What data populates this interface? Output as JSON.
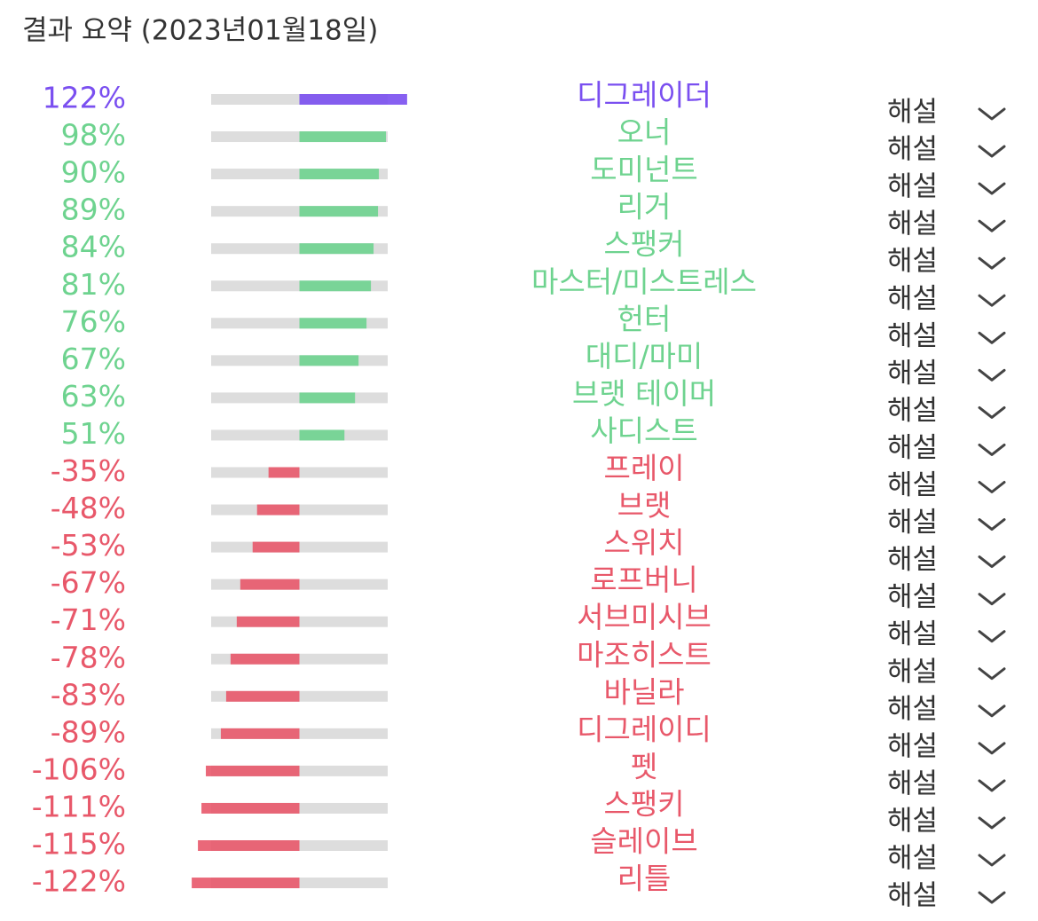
{
  "chart_data": {
    "type": "bar",
    "orientation": "horizontal",
    "title": "결과 요약 (2023년01월18일)",
    "categories": [
      "디그레이더",
      "오너",
      "도미넌트",
      "리거",
      "스팽커",
      "마스터/미스트레스",
      "헌터",
      "대디/마미",
      "브랫 테이머",
      "사디스트",
      "프레이",
      "브랫",
      "스위치",
      "로프버니",
      "서브미시브",
      "마조히스트",
      "바닐라",
      "디그레이디",
      "펫",
      "스팽키",
      "슬레이브",
      "리틀"
    ],
    "values": [
      122,
      98,
      90,
      89,
      84,
      81,
      76,
      67,
      63,
      51,
      -35,
      -48,
      -53,
      -67,
      -71,
      -78,
      -83,
      -89,
      -106,
      -111,
      -115,
      -122
    ],
    "value_labels": [
      "122%",
      "98%",
      "90%",
      "89%",
      "84%",
      "81%",
      "76%",
      "67%",
      "63%",
      "51%",
      "-35%",
      "-48%",
      "-53%",
      "-67%",
      "-71%",
      "-78%",
      "-83%",
      "-89%",
      "-106%",
      "-111%",
      "-115%",
      "-122%"
    ],
    "xlim": [
      -100,
      100
    ],
    "color_max": "#7a4ff0",
    "color_positive": "#6ed38f",
    "color_negative": "#e8586a",
    "track_color": "#dddddd",
    "detail_label": "해설"
  }
}
